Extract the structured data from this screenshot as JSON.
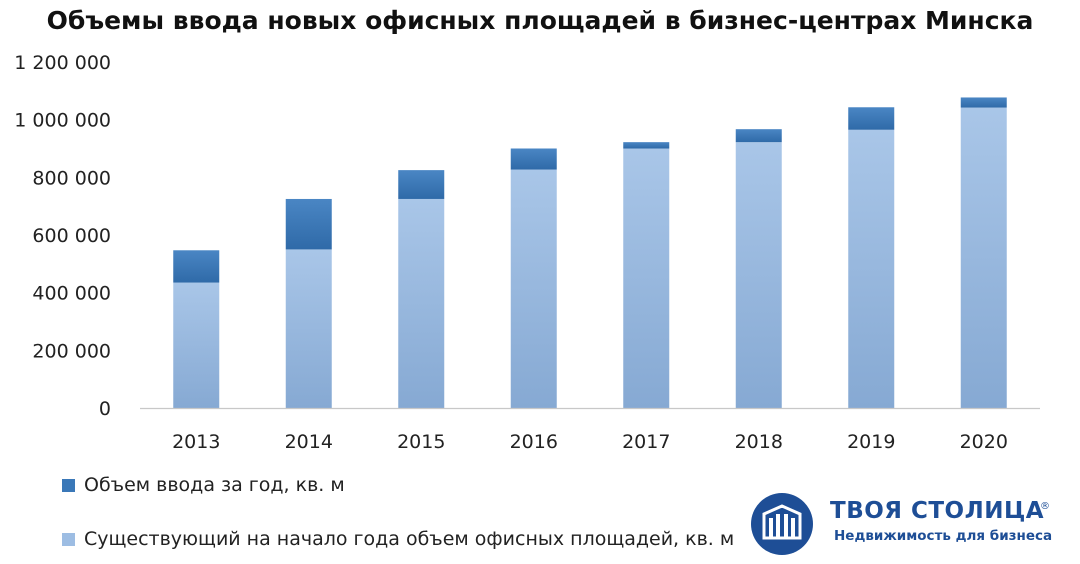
{
  "chart_data": {
    "type": "bar",
    "stacked": true,
    "title": "Объемы ввода новых офисных площадей в бизнес-центрах Минска",
    "categories": [
      "2013",
      "2014",
      "2015",
      "2016",
      "2017",
      "2018",
      "2019",
      "2020"
    ],
    "series": [
      {
        "name": "Существующий на начало года объем офисных площадей, кв. м",
        "color": "#9dbde3",
        "values": [
          435000,
          550000,
          725000,
          827000,
          900000,
          922000,
          965000,
          1042000
        ]
      },
      {
        "name": "Объем ввода за год, кв. м",
        "color": "#3a78b8",
        "values": [
          112000,
          175000,
          100000,
          73000,
          22000,
          45000,
          78000,
          35000
        ]
      }
    ],
    "ylim": [
      0,
      1200000
    ],
    "yticks": [
      0,
      200000,
      400000,
      600000,
      800000,
      1000000,
      1200000
    ],
    "ytick_labels": [
      "0",
      "200 000",
      "400 000",
      "600 000",
      "800 000",
      "1 000 000",
      "1 200 000"
    ],
    "grid": false,
    "legend_position": "bottom-left"
  },
  "legend": [
    {
      "label": "Объем ввода за год, кв. м",
      "color": "#3a78b8"
    },
    {
      "label": "Существующий на начало года объем офисных площадей, кв. м",
      "color": "#9dbde3"
    }
  ],
  "logo": {
    "name": "ТВОЯ СТОЛИЦА",
    "registered": "®",
    "tagline": "Недвижимость для бизнеса"
  }
}
